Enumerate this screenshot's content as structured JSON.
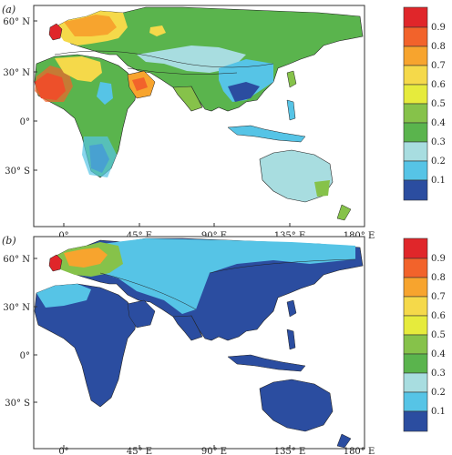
{
  "panels": [
    {
      "label": "(a)",
      "lat_labels": [
        "60° N",
        "30° N",
        "0°",
        "30° S"
      ],
      "lon_labels": [
        "0°",
        "45° E",
        "90° E",
        "135° E",
        "180° E"
      ],
      "colorbar": [
        "0.9",
        "0.8",
        "0.7",
        "0.6",
        "0.5",
        "0.4",
        "0.3",
        "0.2",
        "0.1"
      ]
    },
    {
      "label": "(b)",
      "lat_labels": [
        "60° N",
        "30° N",
        "0°",
        "30° S"
      ],
      "lon_labels": [
        "0°",
        "45° E",
        "90° E",
        "135° E",
        "180° E"
      ],
      "colorbar": [
        "0.9",
        "0.8",
        "0.7",
        "0.6",
        "0.5",
        "0.4",
        "0.3",
        "0.2",
        "0.1"
      ]
    }
  ],
  "colorscale": [
    "#e0262a",
    "#f2632b",
    "#f7a42e",
    "#f5d94a",
    "#e6eb3c",
    "#86c24a",
    "#5ab44d",
    "#a8dde0",
    "#56c4e6",
    "#2b4da0"
  ]
}
